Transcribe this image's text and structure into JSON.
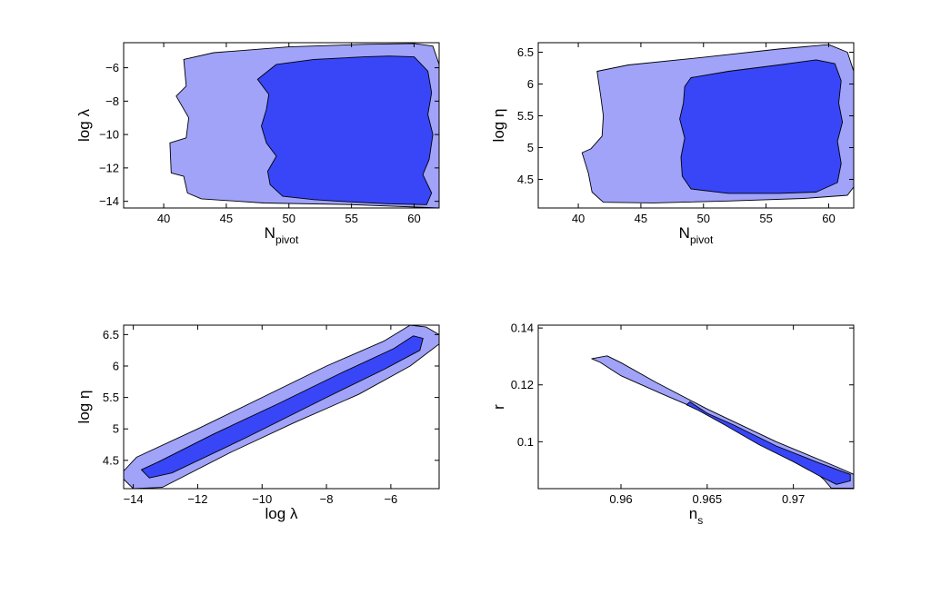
{
  "chart_data": [
    {
      "type": "contour",
      "panel": "top-left",
      "xlabel": "N",
      "xlabel_sub": "pivot",
      "ylabel": "log λ",
      "xlim": [
        36.8,
        62
      ],
      "ylim": [
        -14.4,
        -4.5
      ],
      "xticks": [
        40,
        45,
        50,
        55,
        60
      ],
      "yticks": [
        -6,
        -8,
        -10,
        -12,
        -14
      ],
      "regions": [
        {
          "level": "outer",
          "color": "#a0a3f8",
          "points": [
            [
              41.6,
              -5.5
            ],
            [
              44,
              -5.1
            ],
            [
              50,
              -4.75
            ],
            [
              56,
              -4.6
            ],
            [
              60,
              -4.55
            ],
            [
              61.5,
              -4.7
            ],
            [
              62,
              -5.8
            ],
            [
              62,
              -14.4
            ],
            [
              55,
              -14.2
            ],
            [
              48,
              -14.1
            ],
            [
              43,
              -13.85
            ],
            [
              41.9,
              -13.5
            ],
            [
              41.6,
              -12.5
            ],
            [
              40.6,
              -12.3
            ],
            [
              40.5,
              -10.5
            ],
            [
              41.8,
              -10.2
            ],
            [
              42,
              -9
            ],
            [
              41,
              -7.7
            ],
            [
              41.8,
              -7.1
            ],
            [
              41.6,
              -5.5
            ]
          ]
        },
        {
          "level": "inner",
          "color": "#3846f8",
          "points": [
            [
              47.5,
              -6.7
            ],
            [
              49,
              -5.8
            ],
            [
              52,
              -5.5
            ],
            [
              56,
              -5.35
            ],
            [
              58,
              -5.3
            ],
            [
              60,
              -5.35
            ],
            [
              61.1,
              -6.2
            ],
            [
              61.4,
              -7.5
            ],
            [
              61.1,
              -8.8
            ],
            [
              61.5,
              -10
            ],
            [
              61.2,
              -11.5
            ],
            [
              60.7,
              -12.4
            ],
            [
              61.4,
              -13.5
            ],
            [
              61,
              -14.2
            ],
            [
              58,
              -14.15
            ],
            [
              54,
              -14
            ],
            [
              52,
              -13.9
            ],
            [
              49.5,
              -13.7
            ],
            [
              48.5,
              -13
            ],
            [
              48.3,
              -12.2
            ],
            [
              49,
              -11.3
            ],
            [
              48.2,
              -10.5
            ],
            [
              47.8,
              -9.5
            ],
            [
              48.2,
              -8.5
            ],
            [
              48.4,
              -7.6
            ],
            [
              47.5,
              -6.7
            ]
          ]
        }
      ]
    },
    {
      "type": "contour",
      "panel": "top-right",
      "xlabel": "N",
      "xlabel_sub": "pivot",
      "ylabel": "log η",
      "xlim": [
        36.8,
        62
      ],
      "ylim": [
        4.05,
        6.65
      ],
      "xticks": [
        40,
        45,
        50,
        55,
        60
      ],
      "yticks": [
        4.5,
        5,
        5.5,
        6,
        6.5
      ],
      "regions": [
        {
          "level": "outer",
          "color": "#a0a3f8",
          "points": [
            [
              41.5,
              6.2
            ],
            [
              44,
              6.3
            ],
            [
              50,
              6.42
            ],
            [
              56,
              6.55
            ],
            [
              60,
              6.62
            ],
            [
              61.5,
              6.5
            ],
            [
              62,
              6.2
            ],
            [
              62,
              4.38
            ],
            [
              61.5,
              4.25
            ],
            [
              58,
              4.2
            ],
            [
              52,
              4.16
            ],
            [
              46,
              4.13
            ],
            [
              42,
              4.14
            ],
            [
              41.1,
              4.3
            ],
            [
              40.8,
              4.6
            ],
            [
              40.3,
              4.92
            ],
            [
              41,
              4.98
            ],
            [
              41.9,
              5.18
            ],
            [
              42,
              5.5
            ],
            [
              41.8,
              5.8
            ],
            [
              41.5,
              6.2
            ]
          ]
        },
        {
          "level": "inner",
          "color": "#3846f8",
          "points": [
            [
              48.5,
              5.96
            ],
            [
              49,
              6.1
            ],
            [
              52,
              6.2
            ],
            [
              56,
              6.3
            ],
            [
              59,
              6.38
            ],
            [
              60.5,
              6.32
            ],
            [
              61,
              6.05
            ],
            [
              60.8,
              5.7
            ],
            [
              61.1,
              5.4
            ],
            [
              60.7,
              5.1
            ],
            [
              61,
              4.75
            ],
            [
              60.7,
              4.45
            ],
            [
              59,
              4.3
            ],
            [
              56,
              4.28
            ],
            [
              52,
              4.28
            ],
            [
              49,
              4.35
            ],
            [
              48.3,
              4.55
            ],
            [
              48.2,
              4.85
            ],
            [
              48.5,
              5.15
            ],
            [
              48.1,
              5.45
            ],
            [
              48.4,
              5.7
            ],
            [
              48.5,
              5.96
            ]
          ]
        }
      ]
    },
    {
      "type": "contour",
      "panel": "bottom-left",
      "xlabel": "log λ",
      "ylabel": "log η",
      "xlim": [
        -14.3,
        -4.5
      ],
      "ylim": [
        4.05,
        6.65
      ],
      "xticks": [
        -14,
        -12,
        -10,
        -8,
        -6
      ],
      "yticks": [
        4.5,
        5,
        5.5,
        6,
        6.5
      ],
      "regions": [
        {
          "level": "outer",
          "color": "#a0a3f8",
          "points": [
            [
              -14.3,
              4.2
            ],
            [
              -14.3,
              4.33
            ],
            [
              -13.9,
              4.55
            ],
            [
              -12,
              5.0
            ],
            [
              -10,
              5.5
            ],
            [
              -8,
              6.0
            ],
            [
              -6.2,
              6.4
            ],
            [
              -5.4,
              6.65
            ],
            [
              -4.9,
              6.62
            ],
            [
              -4.5,
              6.5
            ],
            [
              -4.5,
              6.35
            ],
            [
              -5.4,
              6.0
            ],
            [
              -7,
              5.55
            ],
            [
              -9,
              5.1
            ],
            [
              -11,
              4.62
            ],
            [
              -13.1,
              4.07
            ],
            [
              -14,
              4.05
            ],
            [
              -14.3,
              4.2
            ]
          ]
        },
        {
          "level": "inner",
          "color": "#3846f8",
          "points": [
            [
              -13.75,
              4.35
            ],
            [
              -13.2,
              4.48
            ],
            [
              -11.5,
              4.92
            ],
            [
              -9.5,
              5.4
            ],
            [
              -7.5,
              5.9
            ],
            [
              -5.9,
              6.28
            ],
            [
              -5.3,
              6.48
            ],
            [
              -5.0,
              6.44
            ],
            [
              -5.1,
              6.25
            ],
            [
              -6.2,
              5.95
            ],
            [
              -8.0,
              5.5
            ],
            [
              -10.5,
              4.86
            ],
            [
              -12.8,
              4.3
            ],
            [
              -13.5,
              4.22
            ],
            [
              -13.75,
              4.35
            ]
          ]
        }
      ]
    },
    {
      "type": "contour",
      "panel": "bottom-right",
      "xlabel": "n",
      "xlabel_sub": "s",
      "ylabel": "r",
      "xlim": [
        0.9552,
        0.9735
      ],
      "ylim": [
        0.0835,
        0.141
      ],
      "xticks": [
        0.96,
        0.965,
        0.97
      ],
      "yticks": [
        0.14,
        0.12,
        0.1
      ],
      "regions": [
        {
          "level": "outer",
          "color": "#a0a3f8",
          "points": [
            [
              0.9583,
              0.1292
            ],
            [
              0.9588,
              0.1279
            ],
            [
              0.96,
              0.1232
            ],
            [
              0.9625,
              0.1165
            ],
            [
              0.965,
              0.11
            ],
            [
              0.968,
              0.101
            ],
            [
              0.9705,
              0.0935
            ],
            [
              0.9718,
              0.0865
            ],
            [
              0.9722,
              0.0837
            ],
            [
              0.9735,
              0.0837
            ],
            [
              0.9735,
              0.0885
            ],
            [
              0.9725,
              0.0912
            ],
            [
              0.969,
              0.1
            ],
            [
              0.965,
              0.1115
            ],
            [
              0.962,
              0.121
            ],
            [
              0.96,
              0.1278
            ],
            [
              0.9592,
              0.1302
            ],
            [
              0.9583,
              0.1292
            ]
          ]
        },
        {
          "level": "inner",
          "color": "#3846f8",
          "points": [
            [
              0.9638,
              0.113
            ],
            [
              0.9645,
              0.111
            ],
            [
              0.966,
              0.106
            ],
            [
              0.968,
              0.099
            ],
            [
              0.97,
              0.093
            ],
            [
              0.9715,
              0.088
            ],
            [
              0.9725,
              0.085
            ],
            [
              0.9733,
              0.0862
            ],
            [
              0.9733,
              0.0885
            ],
            [
              0.9715,
              0.0925
            ],
            [
              0.969,
              0.0985
            ],
            [
              0.9665,
              0.106
            ],
            [
              0.965,
              0.11
            ],
            [
              0.964,
              0.114
            ],
            [
              0.9638,
              0.113
            ]
          ]
        }
      ]
    }
  ]
}
